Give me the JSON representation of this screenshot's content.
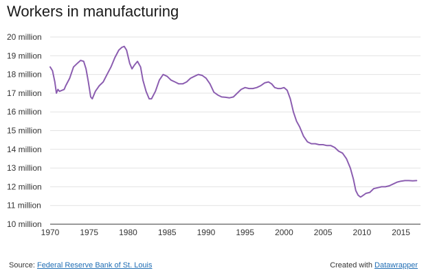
{
  "chart_data": {
    "type": "line",
    "title": "Workers in manufacturing",
    "xlabel": "",
    "ylabel": "",
    "xlim": [
      1970,
      2017.5
    ],
    "ylim": [
      10000000,
      20000000
    ],
    "y_ticks": [
      {
        "value": 10000000,
        "label": "10 million"
      },
      {
        "value": 11000000,
        "label": "11 million"
      },
      {
        "value": 12000000,
        "label": "12 million"
      },
      {
        "value": 13000000,
        "label": "13 million"
      },
      {
        "value": 14000000,
        "label": "14 million"
      },
      {
        "value": 15000000,
        "label": "15 million"
      },
      {
        "value": 16000000,
        "label": "16 million"
      },
      {
        "value": 17000000,
        "label": "17 million"
      },
      {
        "value": 18000000,
        "label": "18 million"
      },
      {
        "value": 19000000,
        "label": "19 million"
      },
      {
        "value": 20000000,
        "label": "20 million"
      }
    ],
    "x_ticks": [
      "1970",
      "1975",
      "1980",
      "1985",
      "1990",
      "1995",
      "2000",
      "2005",
      "2010",
      "2015"
    ],
    "grid": true,
    "line_color": "#8b5db0",
    "series": [
      {
        "x": [
          1970.0,
          1970.3,
          1970.6,
          1970.8,
          1971.0,
          1971.2,
          1971.5,
          1971.8,
          1972.0,
          1972.5,
          1973.0,
          1973.5,
          1973.9,
          1974.3,
          1974.6,
          1974.9,
          1975.2,
          1975.4,
          1975.8,
          1976.3,
          1976.8,
          1977.3,
          1977.8,
          1978.3,
          1978.8,
          1979.2,
          1979.5,
          1979.8,
          1980.2,
          1980.5,
          1980.8,
          1981.2,
          1981.6,
          1981.9,
          1982.3,
          1982.7,
          1983.0,
          1983.5,
          1984.0,
          1984.5,
          1985.0,
          1985.5,
          1986.0,
          1986.5,
          1987.0,
          1987.5,
          1988.0,
          1988.5,
          1989.0,
          1989.5,
          1990.0,
          1990.5,
          1991.0,
          1991.5,
          1992.0,
          1992.5,
          1993.0,
          1993.5,
          1994.0,
          1994.5,
          1995.0,
          1995.5,
          1996.0,
          1996.5,
          1997.0,
          1997.5,
          1998.0,
          1998.4,
          1998.8,
          1999.2,
          1999.6,
          2000.0,
          2000.4,
          2000.8,
          2001.2,
          2001.6,
          2002.0,
          2002.5,
          2003.0,
          2003.5,
          2004.0,
          2004.5,
          2005.0,
          2005.5,
          2006.0,
          2006.5,
          2007.0,
          2007.5,
          2008.0,
          2008.5,
          2008.9,
          2009.2,
          2009.5,
          2009.8,
          2010.0,
          2010.5,
          2011.0,
          2011.5,
          2012.0,
          2012.5,
          2013.0,
          2013.5,
          2014.0,
          2014.5,
          2015.0,
          2015.5,
          2016.0,
          2016.5,
          2017.0
        ],
        "values": [
          18400000,
          18200000,
          17600000,
          17000000,
          17200000,
          17100000,
          17150000,
          17200000,
          17400000,
          17800000,
          18400000,
          18600000,
          18750000,
          18700000,
          18300000,
          17600000,
          16800000,
          16700000,
          17100000,
          17400000,
          17600000,
          18000000,
          18400000,
          18900000,
          19300000,
          19450000,
          19500000,
          19300000,
          18600000,
          18300000,
          18500000,
          18700000,
          18400000,
          17700000,
          17100000,
          16700000,
          16700000,
          17100000,
          17700000,
          18000000,
          17900000,
          17700000,
          17600000,
          17500000,
          17500000,
          17600000,
          17800000,
          17900000,
          18000000,
          17950000,
          17800000,
          17500000,
          17050000,
          16900000,
          16800000,
          16780000,
          16750000,
          16800000,
          17000000,
          17200000,
          17300000,
          17250000,
          17250000,
          17300000,
          17400000,
          17550000,
          17600000,
          17500000,
          17300000,
          17250000,
          17250000,
          17300000,
          17150000,
          16700000,
          16000000,
          15500000,
          15200000,
          14700000,
          14400000,
          14300000,
          14300000,
          14250000,
          14250000,
          14200000,
          14200000,
          14100000,
          13900000,
          13800000,
          13500000,
          13000000,
          12400000,
          11800000,
          11550000,
          11450000,
          11500000,
          11650000,
          11700000,
          11900000,
          11950000,
          12000000,
          12000000,
          12050000,
          12150000,
          12250000,
          12300000,
          12330000,
          12330000,
          12320000,
          12330000
        ]
      }
    ]
  },
  "footer": {
    "source_prefix": "Source: ",
    "source_link": "Federal Reserve Bank of St. Louis",
    "credit_prefix": "Created with ",
    "credit_link": "Datawrapper"
  }
}
